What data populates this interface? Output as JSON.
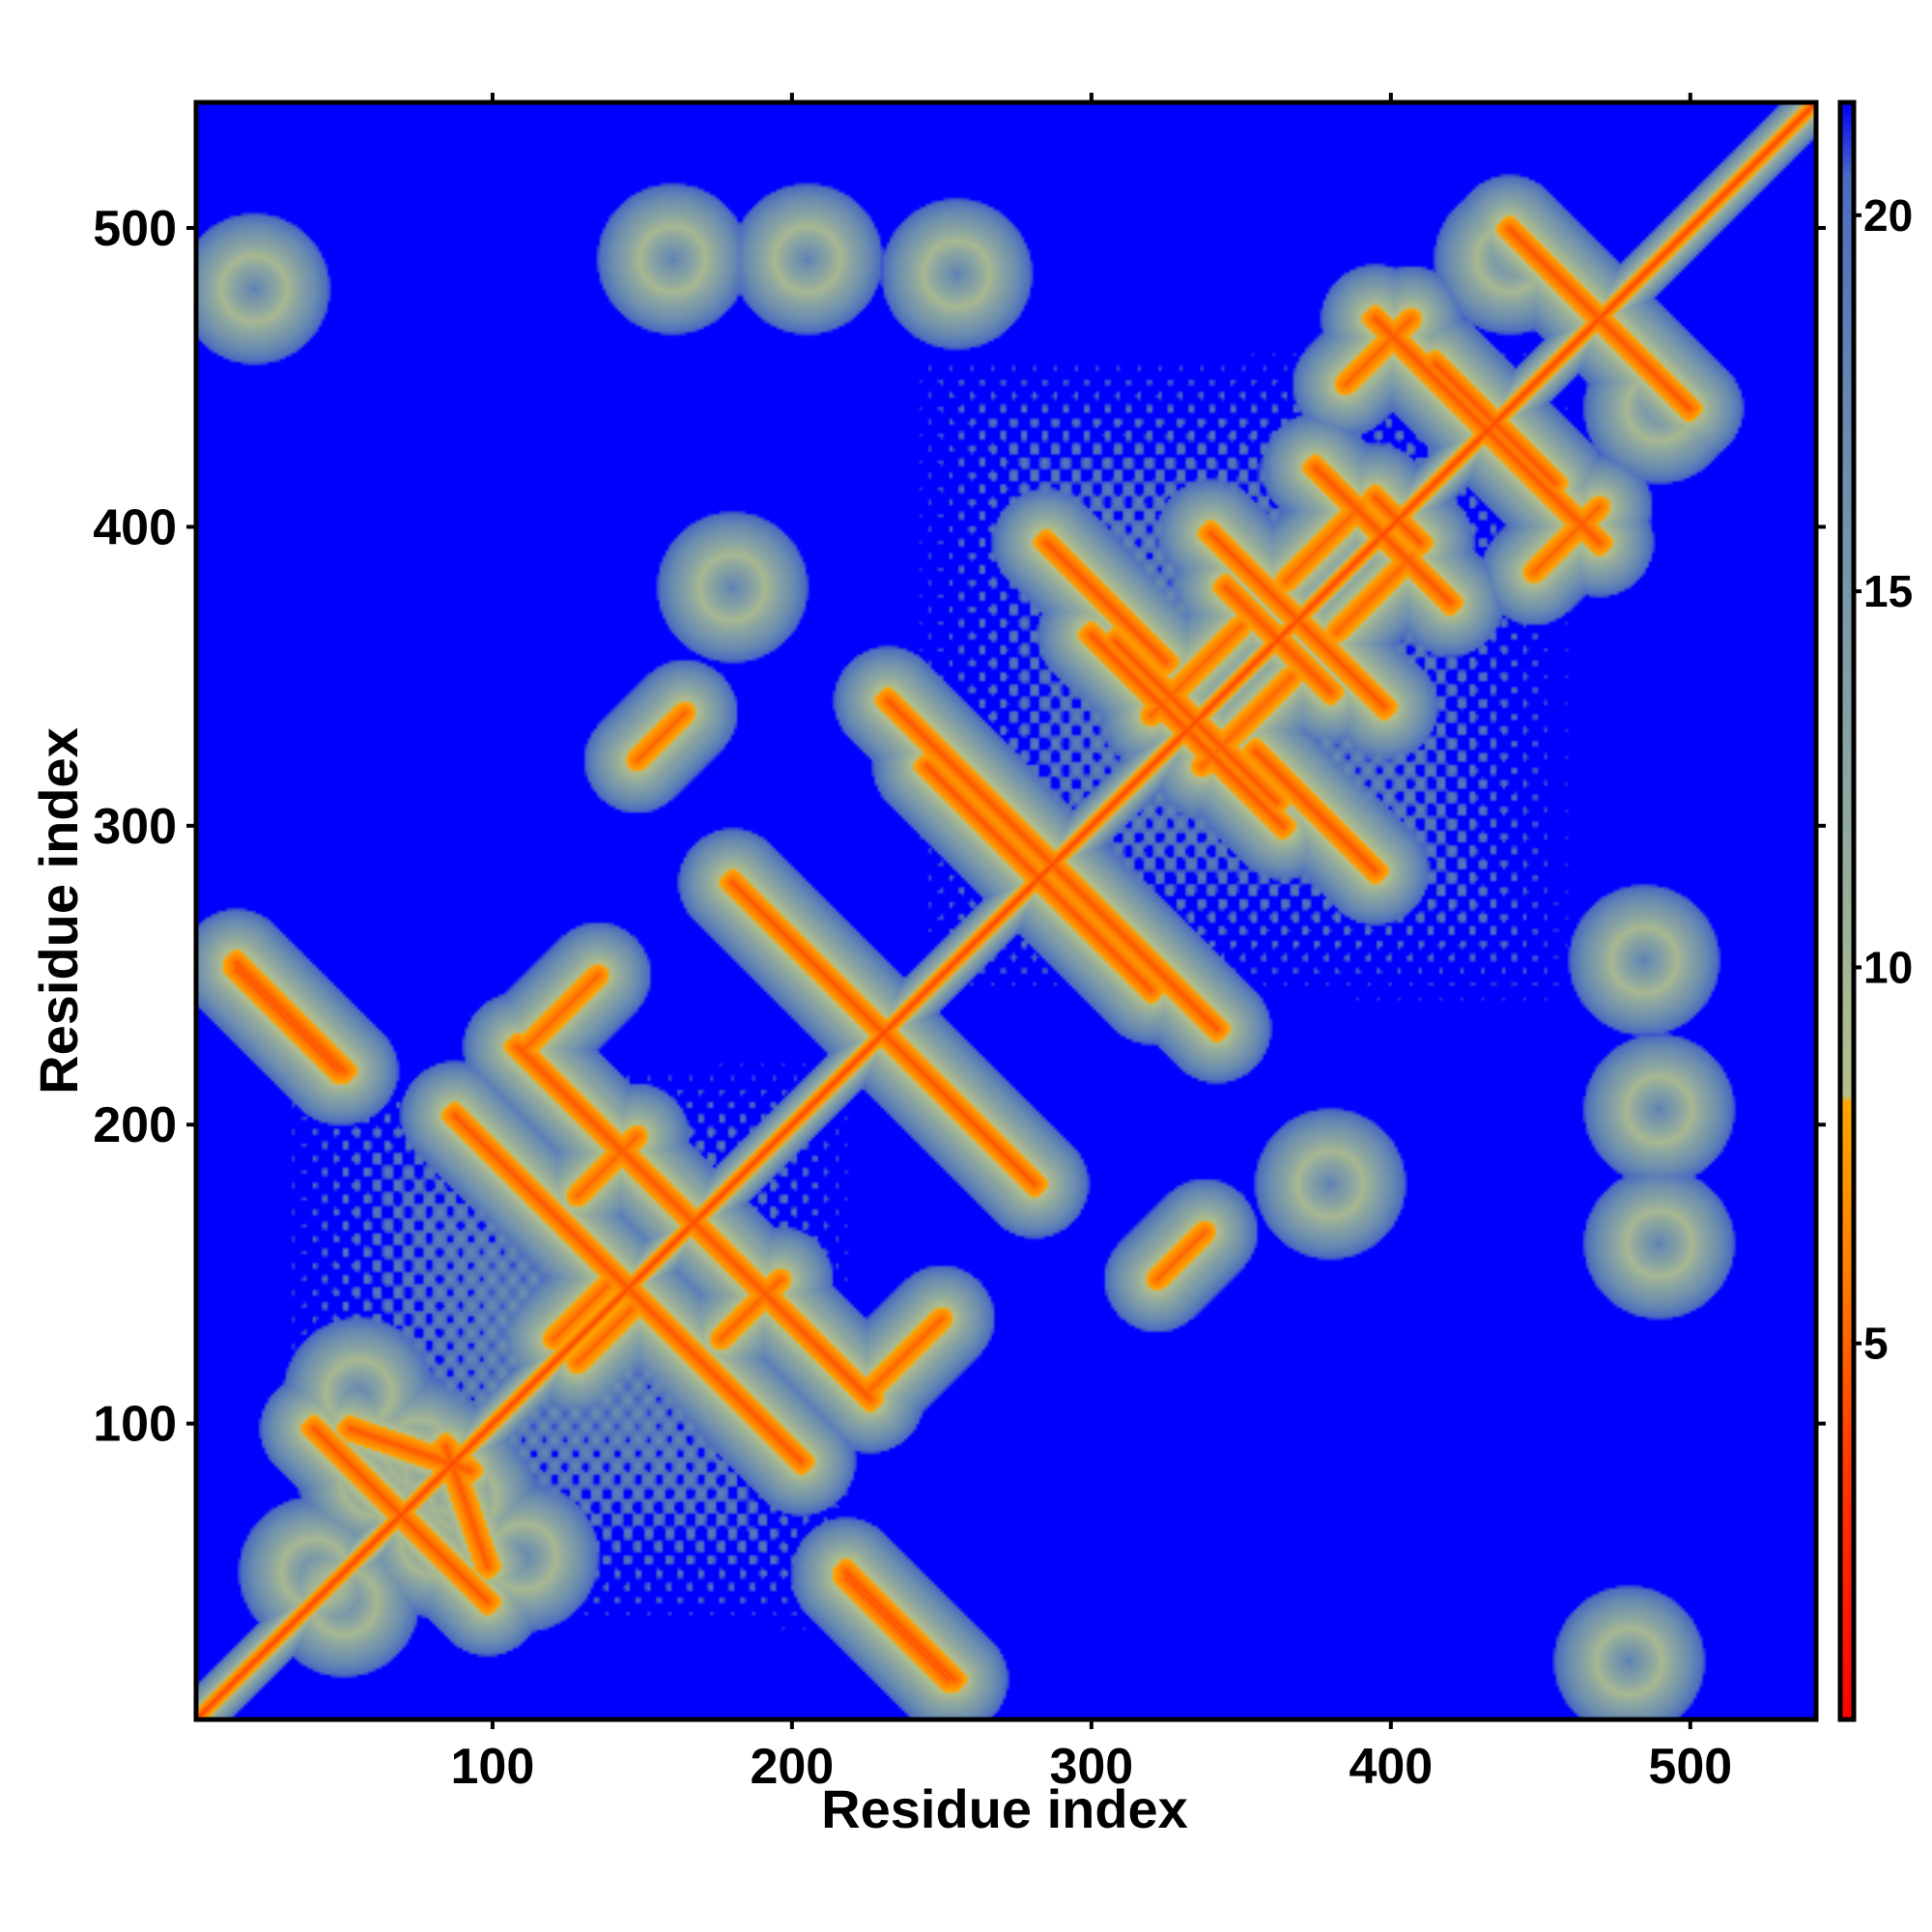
{
  "chart_data": {
    "type": "heatmap",
    "title": "",
    "xlabel": "Residue index",
    "ylabel": "Residue index",
    "xlim": [
      1,
      542
    ],
    "ylim": [
      1,
      542
    ],
    "x_ticks": [
      100,
      200,
      300,
      400,
      500
    ],
    "y_ticks": [
      100,
      200,
      300,
      400,
      500
    ],
    "x_tick_labels": [
      "100",
      "200",
      "300",
      "400",
      "500"
    ],
    "y_tick_labels": [
      "100",
      "200",
      "300",
      "400",
      "500"
    ],
    "colorbar": {
      "range": [
        0,
        21.5
      ],
      "ticks": [
        5,
        10,
        15,
        20
      ],
      "tick_labels": [
        "5",
        "10",
        "15",
        "20"
      ],
      "stops": [
        {
          "value": 0,
          "color": "#ff0000"
        },
        {
          "value": 3.5,
          "color": "#ff3a00"
        },
        {
          "value": 6,
          "color": "#ff7f00"
        },
        {
          "value": 8.2,
          "color": "#ffa500"
        },
        {
          "value": 8.3,
          "color": "#b4c08a"
        },
        {
          "value": 12,
          "color": "#8fa8a0"
        },
        {
          "value": 17,
          "color": "#6a8cb0"
        },
        {
          "value": 20.5,
          "color": "#4a6cc0"
        },
        {
          "value": 21.5,
          "color": "#0000ff"
        }
      ]
    },
    "background_color": "#0000ff",
    "diagonal_color": "#ff0000",
    "features": {
      "parallel_strands": [
        [
          120,
          128,
          186,
          194,
          18
        ],
        [
          128,
          176,
          152,
          200,
          20
        ],
        [
          110,
          225,
          218,
          118,
          25
        ],
        [
          320,
          337,
          318,
          335,
          30
        ],
        [
          365,
          382,
          395,
          412,
          25
        ],
        [
          385,
          448,
          375,
          438,
          22
        ],
        [
          148,
          322,
          158,
          332,
          16
        ]
      ],
      "antiparallel_strands": [
        [
          87,
          203,
          147,
          143
        ],
        [
          108,
          226,
          222,
          112
        ],
        [
          146,
          188,
          204,
          130
        ],
        [
          40,
          98,
          98,
          40
        ],
        [
          84,
          92,
          98,
          52
        ],
        [
          218,
          50,
          254,
          14
        ],
        [
          225,
          236,
          281,
          180
        ],
        [
          252,
          322,
          342,
          232
        ],
        [
          265,
          300,
          320,
          245
        ],
        [
          312,
          358,
          362,
          308
        ],
        [
          300,
          364,
          360,
          304
        ],
        [
          340,
          398,
          398,
          340
        ],
        [
          345,
          380,
          375,
          350
        ],
        [
          285,
          395,
          325,
          355
        ],
        [
          375,
          420,
          420,
          375
        ],
        [
          425,
          440,
          470,
          395
        ],
        [
          415,
          455,
          455,
          415
        ],
        [
          395,
          410,
          410,
          395
        ],
        [
          470,
          470,
          500,
          440
        ],
        [
          14,
          252,
          48,
          218
        ]
      ],
      "helix_rings": [
        [
          80,
          60
        ],
        [
          40,
          50
        ],
        [
          90,
          75
        ],
        [
          55,
          110
        ],
        [
          180,
          380
        ],
        [
          160,
          490
        ],
        [
          205,
          490
        ],
        [
          485,
          255
        ],
        [
          480,
          20
        ],
        [
          490,
          440
        ]
      ]
    }
  }
}
